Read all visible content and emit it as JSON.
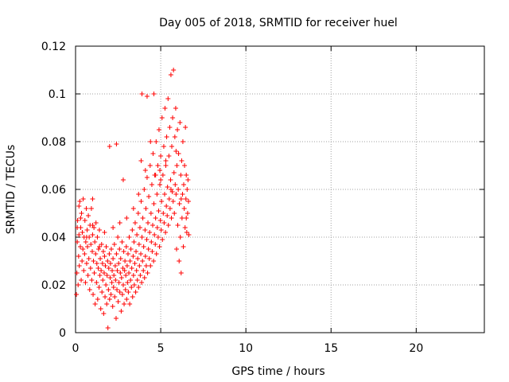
{
  "chart_data": {
    "type": "scatter",
    "title": "Day 005 of 2018, SRMTID for receiver huel",
    "xlabel": "GPS time / hours",
    "ylabel": "SRMTID / TECUs",
    "xlim": [
      0,
      24
    ],
    "ylim": [
      0,
      0.12
    ],
    "x_ticks": [
      "0",
      "5",
      "10",
      "15",
      "20"
    ],
    "y_ticks": [
      "0",
      "0.02",
      "0.04",
      "0.06",
      "0.08",
      "0.1",
      "0.12"
    ],
    "grid": true,
    "marker": "+",
    "color": "#ff0000",
    "series": [
      {
        "points": [
          [
            0.05,
            0.016
          ],
          [
            0.08,
            0.025
          ],
          [
            0.1,
            0.038
          ],
          [
            0.12,
            0.047
          ],
          [
            0.15,
            0.02
          ],
          [
            0.18,
            0.032
          ],
          [
            0.2,
            0.041
          ],
          [
            0.22,
            0.028
          ],
          [
            0.25,
            0.055
          ],
          [
            0.28,
            0.036
          ],
          [
            0.3,
            0.044
          ],
          [
            0.33,
            0.022
          ],
          [
            0.35,
            0.05
          ],
          [
            0.38,
            0.03
          ],
          [
            0.4,
            0.042
          ],
          [
            0.43,
            0.035
          ],
          [
            0.45,
            0.056
          ],
          [
            0.48,
            0.026
          ],
          [
            0.5,
            0.04
          ],
          [
            0.53,
            0.033
          ],
          [
            0.55,
            0.047
          ],
          [
            0.58,
            0.021
          ],
          [
            0.6,
            0.038
          ],
          [
            0.63,
            0.052
          ],
          [
            0.65,
            0.029
          ],
          [
            0.68,
            0.043
          ],
          [
            0.7,
            0.036
          ],
          [
            0.73,
            0.024
          ],
          [
            0.75,
            0.049
          ],
          [
            0.78,
            0.031
          ],
          [
            0.8,
            0.04
          ],
          [
            0.83,
            0.018
          ],
          [
            0.85,
            0.045
          ],
          [
            0.88,
            0.027
          ],
          [
            0.9,
            0.037
          ],
          [
            0.93,
            0.052
          ],
          [
            0.95,
            0.022
          ],
          [
            0.98,
            0.034
          ],
          [
            1.0,
            0.041
          ],
          [
            1.03,
            0.016
          ],
          [
            1.05,
            0.03
          ],
          [
            1.08,
            0.044
          ],
          [
            1.1,
            0.025
          ],
          [
            1.13,
            0.038
          ],
          [
            1.15,
            0.012
          ],
          [
            1.18,
            0.033
          ],
          [
            1.2,
            0.046
          ],
          [
            1.23,
            0.021
          ],
          [
            1.25,
            0.029
          ],
          [
            1.28,
            0.04
          ],
          [
            1.3,
            0.014
          ],
          [
            1.33,
            0.027
          ],
          [
            1.35,
            0.035
          ],
          [
            1.38,
            0.019
          ],
          [
            1.4,
            0.043
          ],
          [
            1.43,
            0.024
          ],
          [
            1.45,
            0.031
          ],
          [
            1.48,
            0.01
          ],
          [
            1.5,
            0.026
          ],
          [
            1.53,
            0.037
          ],
          [
            1.55,
            0.017
          ],
          [
            1.58,
            0.029
          ],
          [
            1.6,
            0.022
          ],
          [
            1.63,
            0.034
          ],
          [
            1.65,
            0.008
          ],
          [
            1.68,
            0.025
          ],
          [
            1.7,
            0.032
          ],
          [
            1.73,
            0.015
          ],
          [
            1.75,
            0.028
          ],
          [
            1.78,
            0.02
          ],
          [
            1.8,
            0.036
          ],
          [
            1.83,
            0.012
          ],
          [
            1.85,
            0.024
          ],
          [
            1.88,
            0.03
          ],
          [
            1.9,
            0.002
          ],
          [
            1.93,
            0.018
          ],
          [
            1.95,
            0.027
          ],
          [
            1.98,
            0.033
          ],
          [
            2.0,
            0.014
          ],
          [
            2.03,
            0.023
          ],
          [
            2.05,
            0.029
          ],
          [
            2.08,
            0.016
          ],
          [
            2.1,
            0.035
          ],
          [
            2.13,
            0.021
          ],
          [
            2.15,
            0.026
          ],
          [
            2.18,
            0.011
          ],
          [
            2.2,
            0.031
          ],
          [
            2.23,
            0.019
          ],
          [
            2.25,
            0.024
          ],
          [
            2.28,
            0.037
          ],
          [
            2.3,
            0.015
          ],
          [
            2.33,
            0.028
          ],
          [
            2.35,
            0.022
          ],
          [
            2.38,
            0.006
          ],
          [
            2.4,
            0.033
          ],
          [
            2.43,
            0.018
          ],
          [
            2.45,
            0.026
          ],
          [
            2.48,
            0.04
          ],
          [
            2.5,
            0.013
          ],
          [
            2.53,
            0.029
          ],
          [
            2.55,
            0.021
          ],
          [
            2.58,
            0.035
          ],
          [
            2.6,
            0.017
          ],
          [
            2.63,
            0.025
          ],
          [
            2.65,
            0.031
          ],
          [
            2.68,
            0.009
          ],
          [
            2.7,
            0.023
          ],
          [
            2.73,
            0.038
          ],
          [
            2.75,
            0.016
          ],
          [
            2.78,
            0.027
          ],
          [
            2.8,
            0.02
          ],
          [
            2.83,
            0.034
          ],
          [
            2.85,
            0.012
          ],
          [
            2.88,
            0.026
          ],
          [
            2.9,
            0.03
          ],
          [
            2.93,
            0.018
          ],
          [
            2.95,
            0.024
          ],
          [
            2.98,
            0.036
          ],
          [
            3.0,
            0.014
          ],
          [
            3.03,
            0.028
          ],
          [
            3.05,
            0.021
          ],
          [
            3.08,
            0.033
          ],
          [
            3.1,
            0.017
          ],
          [
            3.13,
            0.025
          ],
          [
            3.15,
            0.04
          ],
          [
            3.18,
            0.012
          ],
          [
            3.2,
            0.03
          ],
          [
            3.23,
            0.022
          ],
          [
            3.25,
            0.035
          ],
          [
            3.28,
            0.019
          ],
          [
            3.3,
            0.027
          ],
          [
            3.33,
            0.043
          ],
          [
            3.35,
            0.015
          ],
          [
            3.38,
            0.032
          ],
          [
            3.4,
            0.024
          ],
          [
            3.43,
            0.038
          ],
          [
            3.45,
            0.02
          ],
          [
            3.48,
            0.029
          ],
          [
            3.5,
            0.046
          ],
          [
            3.53,
            0.017
          ],
          [
            3.55,
            0.034
          ],
          [
            3.58,
            0.026
          ],
          [
            3.6,
            0.041
          ],
          [
            3.63,
            0.022
          ],
          [
            3.65,
            0.031
          ],
          [
            3.68,
            0.05
          ],
          [
            3.7,
            0.019
          ],
          [
            3.73,
            0.037
          ],
          [
            3.75,
            0.028
          ],
          [
            3.78,
            0.044
          ],
          [
            3.8,
            0.024
          ],
          [
            3.83,
            0.033
          ],
          [
            3.85,
            0.055
          ],
          [
            3.88,
            0.021
          ],
          [
            3.9,
            0.04
          ],
          [
            3.93,
            0.03
          ],
          [
            3.95,
            0.048
          ],
          [
            3.98,
            0.026
          ],
          [
            4.0,
            0.036
          ],
          [
            4.03,
            0.06
          ],
          [
            4.05,
            0.023
          ],
          [
            4.08,
            0.043
          ],
          [
            4.1,
            0.032
          ],
          [
            4.13,
            0.052
          ],
          [
            4.15,
            0.028
          ],
          [
            4.18,
            0.039
          ],
          [
            4.2,
            0.065
          ],
          [
            4.23,
            0.025
          ],
          [
            4.25,
            0.046
          ],
          [
            4.28,
            0.035
          ],
          [
            4.3,
            0.057
          ],
          [
            4.33,
            0.031
          ],
          [
            4.35,
            0.042
          ],
          [
            4.38,
            0.07
          ],
          [
            4.4,
            0.028
          ],
          [
            4.43,
            0.05
          ],
          [
            4.45,
            0.038
          ],
          [
            4.48,
            0.062
          ],
          [
            4.5,
            0.034
          ],
          [
            4.53,
            0.045
          ],
          [
            4.55,
            0.075
          ],
          [
            4.58,
            0.03
          ],
          [
            4.6,
            0.054
          ],
          [
            4.63,
            0.041
          ],
          [
            4.65,
            0.066
          ],
          [
            4.68,
            0.037
          ],
          [
            4.7,
            0.048
          ],
          [
            4.73,
            0.08
          ],
          [
            4.75,
            0.033
          ],
          [
            4.78,
            0.058
          ],
          [
            4.8,
            0.044
          ],
          [
            4.83,
            0.07
          ],
          [
            4.85,
            0.04
          ],
          [
            4.88,
            0.051
          ],
          [
            4.9,
            0.085
          ],
          [
            4.93,
            0.036
          ],
          [
            4.95,
            0.062
          ],
          [
            4.98,
            0.047
          ],
          [
            5.0,
            0.074
          ],
          [
            5.03,
            0.043
          ],
          [
            5.05,
            0.055
          ],
          [
            5.08,
            0.09
          ],
          [
            5.1,
            0.039
          ],
          [
            5.13,
            0.066
          ],
          [
            5.15,
            0.05
          ],
          [
            5.18,
            0.078
          ],
          [
            5.2,
            0.046
          ],
          [
            5.23,
            0.058
          ],
          [
            5.25,
            0.094
          ],
          [
            5.28,
            0.042
          ],
          [
            5.3,
            0.07
          ],
          [
            5.33,
            0.053
          ],
          [
            5.35,
            0.082
          ],
          [
            5.38,
            0.049
          ],
          [
            5.4,
            0.061
          ],
          [
            5.43,
            0.098
          ],
          [
            5.45,
            0.045
          ],
          [
            5.48,
            0.074
          ],
          [
            5.5,
            0.056
          ],
          [
            5.53,
            0.086
          ],
          [
            5.55,
            0.052
          ],
          [
            5.58,
            0.064
          ],
          [
            5.6,
            0.108
          ],
          [
            5.63,
            0.048
          ],
          [
            5.65,
            0.078
          ],
          [
            5.68,
            0.059
          ],
          [
            5.7,
            0.09
          ],
          [
            5.73,
            0.055
          ],
          [
            5.75,
            0.11
          ],
          [
            5.78,
            0.067
          ],
          [
            5.8,
            0.05
          ],
          [
            5.83,
            0.082
          ],
          [
            5.85,
            0.062
          ],
          [
            5.88,
            0.094
          ],
          [
            5.9,
            0.058
          ],
          [
            5.93,
            0.035
          ],
          [
            5.95,
            0.07
          ],
          [
            5.98,
            0.085
          ],
          [
            6.0,
            0.045
          ],
          [
            6.03,
            0.06
          ],
          [
            6.05,
            0.075
          ],
          [
            6.08,
            0.03
          ],
          [
            6.1,
            0.054
          ],
          [
            6.13,
            0.088
          ],
          [
            6.15,
            0.04
          ],
          [
            6.18,
            0.066
          ],
          [
            6.2,
            0.025
          ],
          [
            6.23,
            0.072
          ],
          [
            6.25,
            0.048
          ],
          [
            6.28,
            0.058
          ],
          [
            6.3,
            0.08
          ],
          [
            6.33,
            0.036
          ],
          [
            6.35,
            0.062
          ],
          [
            6.38,
            0.052
          ],
          [
            6.4,
            0.07
          ],
          [
            6.43,
            0.044
          ],
          [
            6.45,
            0.086
          ],
          [
            6.48,
            0.056
          ],
          [
            6.5,
            0.066
          ],
          [
            6.53,
            0.042
          ],
          [
            6.55,
            0.06
          ],
          [
            6.58,
            0.05
          ],
          [
            6.6,
            0.064
          ],
          [
            6.63,
            0.055
          ],
          [
            6.65,
            0.041
          ],
          [
            0.3,
            0.048
          ],
          [
            0.65,
            0.04
          ],
          [
            1.0,
            0.045
          ],
          [
            1.4,
            0.036
          ],
          [
            1.7,
            0.042
          ],
          [
            2.2,
            0.044
          ],
          [
            2.6,
            0.046
          ],
          [
            3.0,
            0.048
          ],
          [
            3.4,
            0.052
          ],
          [
            3.7,
            0.058
          ],
          [
            4.1,
            0.068
          ],
          [
            4.4,
            0.08
          ],
          [
            4.7,
            0.066
          ],
          [
            5.0,
            0.064
          ],
          [
            5.3,
            0.072
          ],
          [
            5.6,
            0.06
          ],
          [
            5.9,
            0.076
          ],
          [
            6.2,
            0.056
          ],
          [
            6.5,
            0.048
          ],
          [
            2.0,
            0.078
          ],
          [
            2.4,
            0.079
          ],
          [
            1.0,
            0.056
          ],
          [
            0.2,
            0.053
          ],
          [
            3.9,
            0.1
          ],
          [
            4.2,
            0.099
          ],
          [
            4.6,
            0.1
          ],
          [
            3.85,
            0.072
          ],
          [
            4.95,
            0.068
          ],
          [
            2.8,
            0.064
          ],
          [
            0.1,
            0.044
          ]
        ]
      }
    ]
  }
}
